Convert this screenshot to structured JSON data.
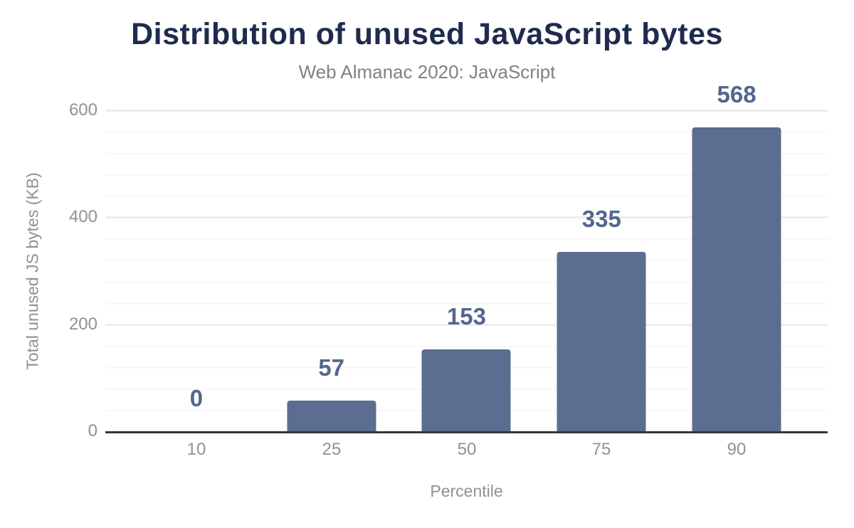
{
  "chart_data": {
    "type": "bar",
    "title": "Distribution of unused JavaScript bytes",
    "subtitle": "Web Almanac 2020: JavaScript",
    "xlabel": "Percentile",
    "ylabel": "Total unused JS bytes (KB)",
    "categories": [
      "10",
      "25",
      "50",
      "75",
      "90"
    ],
    "values": [
      0,
      57,
      153,
      335,
      568
    ],
    "bar_value_labels": [
      "0",
      "57",
      "153",
      "335",
      "568"
    ],
    "ylim": [
      0,
      600
    ],
    "yticks": [
      0,
      200,
      400,
      600
    ],
    "minor_gridline_step": 40,
    "grid": "on",
    "legend": "none",
    "colors": {
      "bar": "#5b6d90",
      "bar_value_label": "#54668c",
      "title": "#1e2b4d",
      "subtitle": "#7f8285",
      "axis_text": "#8e9196",
      "axis_line": "#30363f",
      "gridline_minor": "#f7f7f8",
      "gridline_major": "#ededef",
      "background": "#ffffff"
    }
  }
}
